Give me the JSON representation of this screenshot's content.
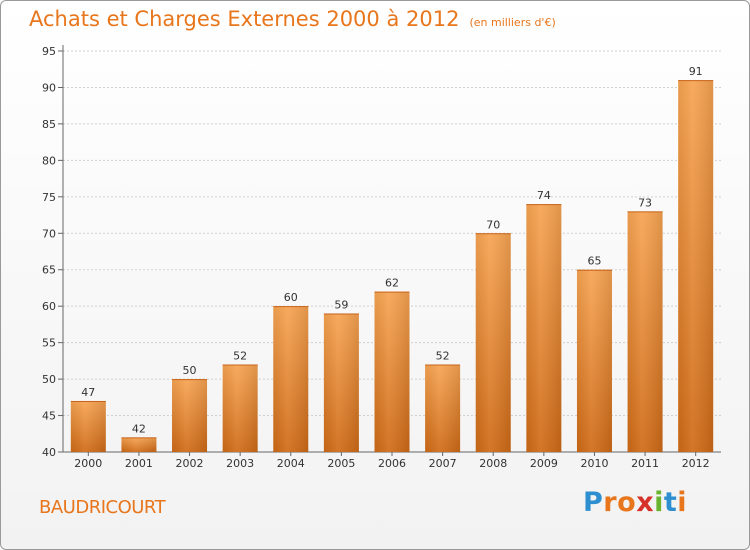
{
  "title": "Achats et Charges Externes 2000 à 2012",
  "subtitle": "(en milliers d'€)",
  "location": "BAUDRICOURT",
  "brand": {
    "letters": [
      "P",
      "r",
      "o",
      "x",
      "i",
      "t",
      "i"
    ],
    "colors": [
      "#2e8fd0",
      "#e8761c",
      "#e8761c",
      "#d6322a",
      "#69b42e",
      "#2e8fd0",
      "#e8761c"
    ]
  },
  "colors": {
    "accent": "#e8761c",
    "bar_top": "#f7a452",
    "bar_bottom": "#cf6a16",
    "grid": "#d0d0d0"
  },
  "chart_data": {
    "type": "bar",
    "title": "Achats et Charges Externes 2000 à 2012",
    "subtitle": "(en milliers d'€)",
    "xlabel": "",
    "ylabel": "",
    "categories": [
      "2000",
      "2001",
      "2002",
      "2003",
      "2004",
      "2005",
      "2006",
      "2007",
      "2008",
      "2009",
      "2010",
      "2011",
      "2012"
    ],
    "values": [
      47,
      42,
      50,
      52,
      60,
      59,
      62,
      52,
      70,
      74,
      65,
      73,
      91
    ],
    "ylim": [
      40,
      95
    ],
    "yticks": [
      40,
      45,
      50,
      55,
      60,
      65,
      70,
      75,
      80,
      85,
      90,
      95
    ],
    "grid": true
  }
}
